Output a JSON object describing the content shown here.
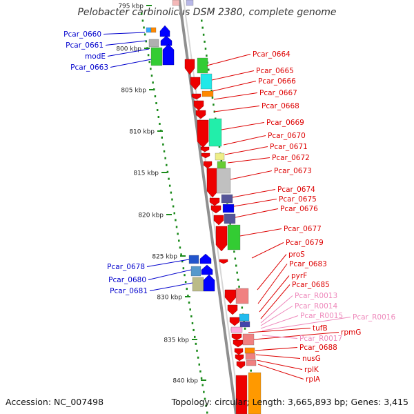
{
  "title": "Pelobacter carbinolicus DSM 2380, complete genome",
  "footer": {
    "accession": "Accession: NC_007498",
    "stats": "Topology: circular; Length: 3,665,893 bp; Genes: 3,415"
  },
  "colors": {
    "forward_label": "#dd0000",
    "reverse_label": "#0000cc",
    "rna_label": "#ee88bb",
    "backbone": "#8f8f8f",
    "tick": "#1a8a1a"
  },
  "kbp_ticks": [
    "795 kbp",
    "800 kbp",
    "805 kbp",
    "810 kbp",
    "815 kbp",
    "820 kbp",
    "825 kbp",
    "830 kbp",
    "835 kbp",
    "840 kbp"
  ],
  "reverse_genes": [
    "Pcar_0660",
    "Pcar_0661",
    "modE",
    "Pcar_0663",
    "Pcar_0678",
    "Pcar_0680",
    "Pcar_0681"
  ],
  "forward_genes": [
    "Pcar_0664",
    "Pcar_0665",
    "Pcar_0666",
    "Pcar_0667",
    "Pcar_0668",
    "Pcar_0669",
    "Pcar_0670",
    "Pcar_0671",
    "Pcar_0672",
    "Pcar_0673",
    "Pcar_0674",
    "Pcar_0675",
    "Pcar_0676",
    "Pcar_0677",
    "Pcar_0679",
    "proS",
    "Pcar_0683",
    "pyrF",
    "Pcar_0685",
    "tufB",
    "rpmG",
    "Pcar_0688",
    "nusG",
    "rplK",
    "rplA"
  ],
  "rna_genes": [
    "Pcar_R0013",
    "Pcar_R0014",
    "Pcar_R0015",
    "Pcar_R0016",
    "Pcar_R0017"
  ]
}
